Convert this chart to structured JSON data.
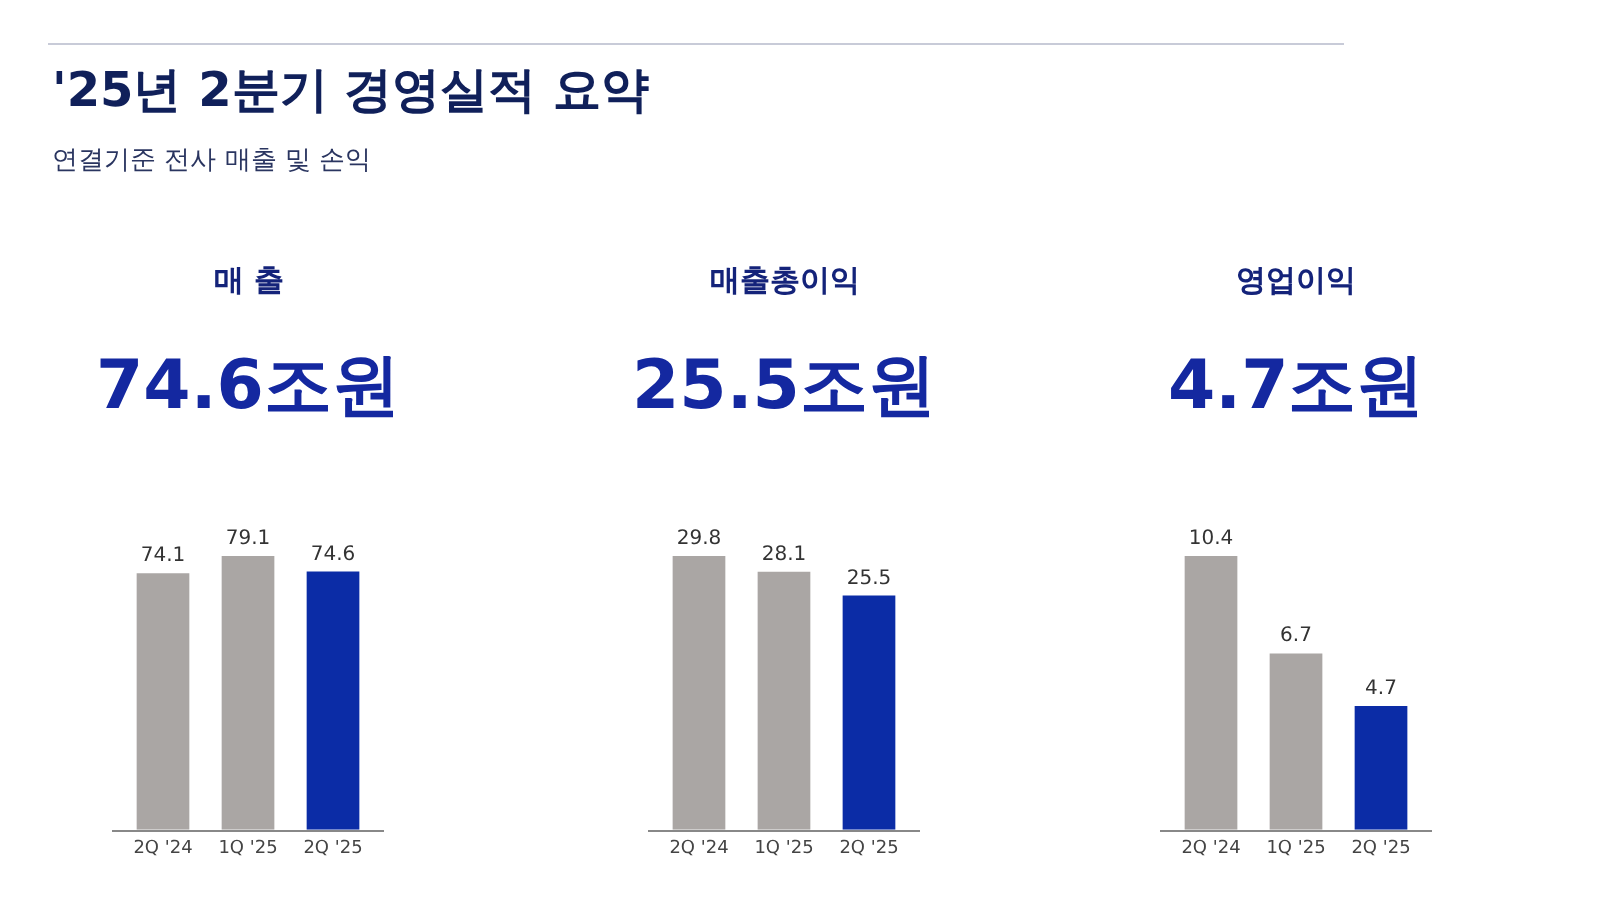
{
  "chart_data": [
    {
      "type": "other",
      "title": "'25년 2분기 경영실적 요약",
      "subtitle": "연결기준 전사 매출 및 손익"
    },
    {
      "type": "bar",
      "title": "매 출",
      "subtitle": "74.6조원",
      "categories": [
        "2Q '24",
        "1Q '25",
        "2Q '25"
      ],
      "values": [
        74.1,
        79.1,
        74.6
      ],
      "colors": [
        "#aaa6a4",
        "#aaa6a4",
        "#0b2ca6"
      ],
      "data_labels": true
    },
    {
      "type": "bar",
      "title": "매출총이익",
      "subtitle": "25.5조원",
      "categories": [
        "2Q '24",
        "1Q '25",
        "2Q '25"
      ],
      "values": [
        29.8,
        28.1,
        25.5
      ],
      "colors": [
        "#aaa6a4",
        "#aaa6a4",
        "#0b2ca6"
      ],
      "data_labels": true
    },
    {
      "type": "bar",
      "title": "영업이익",
      "subtitle": "4.7조원",
      "categories": [
        "2Q '24",
        "1Q '25",
        "2Q '25"
      ],
      "values": [
        10.4,
        6.7,
        4.7
      ],
      "colors": [
        "#aaa6a4",
        "#aaa6a4",
        "#0b2ca6"
      ],
      "data_labels": true
    }
  ]
}
